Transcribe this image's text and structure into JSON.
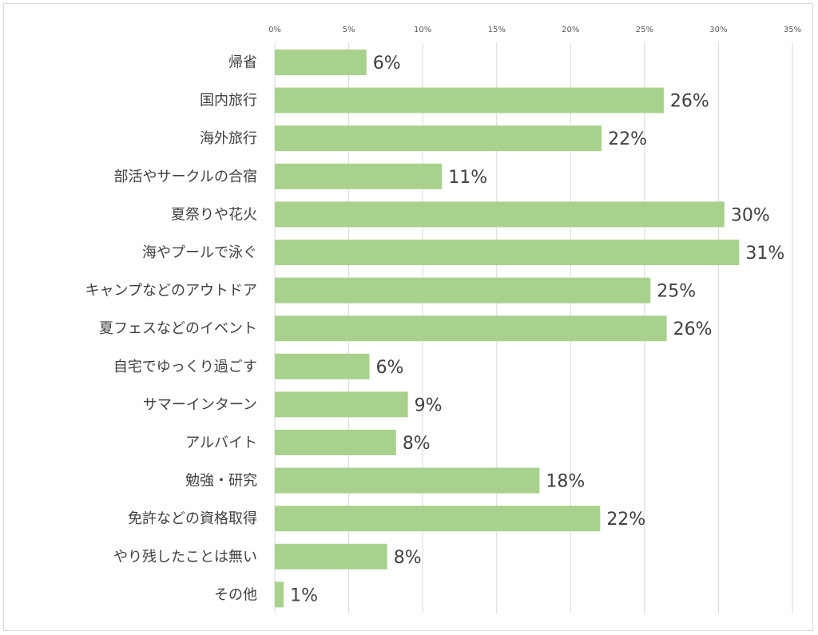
{
  "chart_data": {
    "type": "bar",
    "orientation": "horizontal",
    "categories": [
      "帰省",
      "国内旅行",
      "海外旅行",
      "部活やサークルの合宿",
      "夏祭りや花火",
      "海やプールで泳ぐ",
      "キャンプなどのアウトドア",
      "夏フェスなどのイベント",
      "自宅でゆっくり過ごす",
      "サマーインターン",
      "アルバイト",
      "勉強・研究",
      "免許などの資格取得",
      "やり残したことは無い",
      "その他"
    ],
    "values": [
      6.2,
      26.3,
      22.1,
      11.3,
      30.4,
      31.4,
      25.4,
      26.5,
      6.4,
      9.0,
      8.2,
      17.9,
      22.0,
      7.6,
      0.6
    ],
    "data_labels": [
      "6%",
      "26%",
      "22%",
      "11%",
      "30%",
      "31%",
      "25%",
      "26%",
      "6%",
      "9%",
      "8%",
      "18%",
      "22%",
      "8%",
      "1%"
    ],
    "x_ticks": [
      "0%",
      "5%",
      "10%",
      "15%",
      "20%",
      "25%",
      "30%",
      "35%"
    ],
    "xlim": [
      0,
      35
    ],
    "x_axis_position": "top",
    "grid": true,
    "bar_color": "#A9D18E",
    "gridline_color": "#D9D9D9"
  }
}
